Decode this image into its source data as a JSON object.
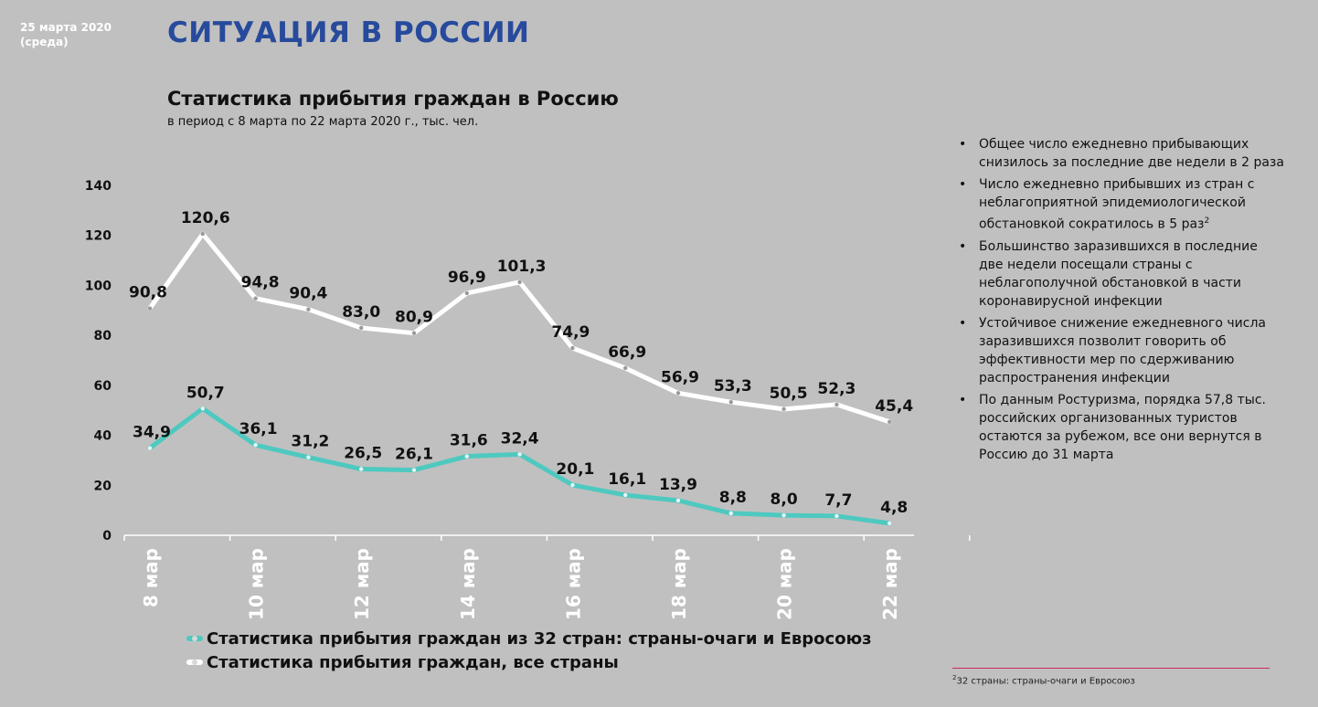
{
  "header": {
    "date_line1": "25 марта 2020",
    "date_line2": "(среда)",
    "title": "СИТУАЦИЯ В РОССИИ"
  },
  "chart_data": {
    "type": "line",
    "title": "Статистика прибытия граждан в Россию",
    "subtitle": "в период с 8 марта по 22 марта 2020 г., тыс. чел.",
    "x": [
      "8 мар",
      "9 мар",
      "10 мар",
      "11 мар",
      "12 мар",
      "13 мар",
      "14 мар",
      "15 мар",
      "16 мар",
      "17 мар",
      "18 мар",
      "19 мар",
      "20 мар",
      "21 мар",
      "22 мар"
    ],
    "x_tick_labels": [
      "8 мар",
      "10 мар",
      "12 мар",
      "14 мар",
      "16 мар",
      "18 мар",
      "20 мар",
      "22 мар"
    ],
    "ylim": [
      0,
      140
    ],
    "yticks": [
      0,
      20,
      40,
      60,
      80,
      100,
      120,
      140
    ],
    "series": [
      {
        "name": "Статистика прибытия граждан, все страны",
        "color": "#ffffff",
        "values": [
          90.8,
          120.6,
          94.8,
          90.4,
          83.0,
          80.9,
          96.9,
          101.3,
          74.9,
          66.9,
          56.9,
          53.3,
          50.5,
          52.3,
          45.4
        ],
        "labels": [
          "90,8",
          "120,6",
          "94,8",
          "90,4",
          "83,0",
          "80,9",
          "96,9",
          "101,3",
          "74,9",
          "66,9",
          "56,9",
          "53,3",
          "50,5",
          "52,3",
          "45,4"
        ]
      },
      {
        "name": "Статистика прибытия граждан из 32 стран: страны-очаги и Евросоюз",
        "color": "#4ec9c0",
        "values": [
          34.9,
          50.7,
          36.1,
          31.2,
          26.5,
          26.1,
          31.6,
          32.4,
          20.1,
          16.1,
          13.9,
          8.8,
          8.0,
          7.7,
          4.8
        ],
        "labels": [
          "34,9",
          "50,7",
          "36,1",
          "31,2",
          "26,5",
          "26,1",
          "31,6",
          "32,4",
          "20,1",
          "16,1",
          "13,9",
          "8,8",
          "8,0",
          "7,7",
          "4,8"
        ]
      }
    ],
    "legend": "bottom-left",
    "grid": false
  },
  "legend": {
    "item1": "Статистика прибытия граждан из 32 стран: страны-очаги и Евросоюз",
    "item2": "Статистика прибытия граждан, все страны"
  },
  "bullets": [
    "Общее число ежедневно прибывающих снизилось за последние две недели в 2 раза",
    "Число ежедневно прибывших из стран с неблагоприятной эпидемиологической обстановкой сократилось в 5 раз",
    "Большинство заразившихся в последние две недели посещали страны с неблагополучной обстановкой в части коронавирусной инфекции",
    "Устойчивое снижение ежедневного числа заразившихся позволит говорить об эффективности мер по сдерживанию распространения инфекции",
    "По данным Ростуризма, порядка 57,8 тыс. российских организованных туристов остаются за рубежом, все они вернутся в Россию до 31 марта"
  ],
  "bullet2_sup": "2",
  "footnote": {
    "sup": "2",
    "text": "32 страны: страны-очаги и Евросоюз"
  }
}
